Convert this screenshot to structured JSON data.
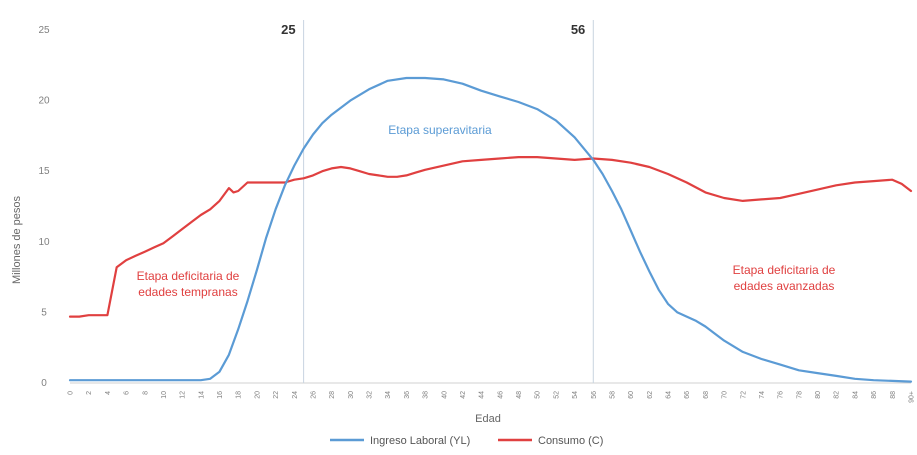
{
  "chart_data": {
    "type": "line",
    "xlabel": "Edad",
    "ylabel": "Millones de pesos",
    "xlim": [
      0,
      90
    ],
    "ylim": [
      0,
      25
    ],
    "y_ticks": [
      0,
      5,
      10,
      15,
      20,
      25
    ],
    "x_ticks": [
      0,
      2,
      4,
      6,
      8,
      10,
      12,
      14,
      16,
      18,
      20,
      22,
      24,
      26,
      28,
      30,
      32,
      34,
      36,
      38,
      40,
      42,
      44,
      46,
      48,
      50,
      52,
      54,
      56,
      58,
      60,
      62,
      64,
      66,
      68,
      70,
      72,
      74,
      76,
      78,
      80,
      82,
      84,
      86,
      88,
      90
    ],
    "x_last_tick": "90+",
    "vertical_markers": [
      {
        "x": 25,
        "label": "25"
      },
      {
        "x": 56,
        "label": "56"
      }
    ],
    "grid": false,
    "legend_position": "bottom",
    "series": [
      {
        "name": "Ingreso Laboral (YL)",
        "color": "#5b9bd5",
        "x": [
          0,
          5,
          10,
          14,
          15,
          16,
          17,
          18,
          19,
          20,
          21,
          22,
          23,
          24,
          25,
          26,
          27,
          28,
          30,
          32,
          34,
          36,
          38,
          40,
          42,
          44,
          46,
          48,
          50,
          52,
          54,
          55,
          56,
          57,
          58,
          59,
          60,
          61,
          62,
          63,
          64,
          65,
          66,
          67,
          68,
          69,
          70,
          72,
          74,
          76,
          78,
          80,
          82,
          84,
          86,
          88,
          90
        ],
        "y": [
          0.2,
          0.2,
          0.2,
          0.2,
          0.3,
          0.8,
          2.0,
          3.8,
          5.8,
          8.0,
          10.3,
          12.3,
          14.0,
          15.4,
          16.6,
          17.6,
          18.4,
          19.0,
          20.0,
          20.8,
          21.4,
          21.6,
          21.6,
          21.5,
          21.2,
          20.7,
          20.3,
          19.9,
          19.4,
          18.6,
          17.4,
          16.6,
          15.8,
          14.8,
          13.6,
          12.3,
          10.8,
          9.3,
          7.9,
          6.6,
          5.6,
          5.0,
          4.7,
          4.4,
          4.0,
          3.5,
          3.0,
          2.2,
          1.7,
          1.3,
          0.9,
          0.7,
          0.5,
          0.3,
          0.2,
          0.15,
          0.1
        ]
      },
      {
        "name": "Consumo (C)",
        "color": "#e04040",
        "x": [
          0,
          1,
          2,
          3,
          4,
          5,
          6,
          7,
          8,
          9,
          10,
          11,
          12,
          13,
          14,
          15,
          16,
          17,
          17.5,
          18,
          19,
          20,
          21,
          22,
          23,
          24,
          25,
          26,
          27,
          28,
          29,
          30,
          31,
          32,
          33,
          34,
          35,
          36,
          37,
          38,
          40,
          42,
          44,
          46,
          48,
          50,
          52,
          54,
          56,
          58,
          60,
          62,
          64,
          66,
          68,
          70,
          72,
          74,
          76,
          78,
          80,
          82,
          84,
          86,
          88,
          89,
          90
        ],
        "y": [
          4.7,
          4.7,
          4.8,
          4.8,
          4.8,
          8.2,
          8.7,
          9.0,
          9.3,
          9.6,
          9.9,
          10.4,
          10.9,
          11.4,
          11.9,
          12.3,
          12.9,
          13.8,
          13.5,
          13.6,
          14.2,
          14.2,
          14.2,
          14.2,
          14.2,
          14.4,
          14.5,
          14.7,
          15.0,
          15.2,
          15.3,
          15.2,
          15.0,
          14.8,
          14.7,
          14.6,
          14.6,
          14.7,
          14.9,
          15.1,
          15.4,
          15.7,
          15.8,
          15.9,
          16.0,
          16.0,
          15.9,
          15.8,
          15.9,
          15.8,
          15.6,
          15.3,
          14.8,
          14.2,
          13.5,
          13.1,
          12.9,
          13.0,
          13.1,
          13.4,
          13.7,
          14.0,
          14.2,
          14.3,
          14.4,
          14.1,
          13.6
        ]
      }
    ],
    "annotations": [
      {
        "text": "Etapa superavitaria",
        "lines": [
          "Etapa superavitaria"
        ],
        "color": "#5b9bd5"
      },
      {
        "text": "Etapa deficitaria de edades tempranas",
        "lines": [
          "Etapa deficitaria de",
          "edades tempranas"
        ],
        "color": "#e04040"
      },
      {
        "text": "Etapa deficitaria de edades avanzadas",
        "lines": [
          "Etapa deficitaria de",
          "edades avanzadas"
        ],
        "color": "#e04040"
      }
    ]
  }
}
